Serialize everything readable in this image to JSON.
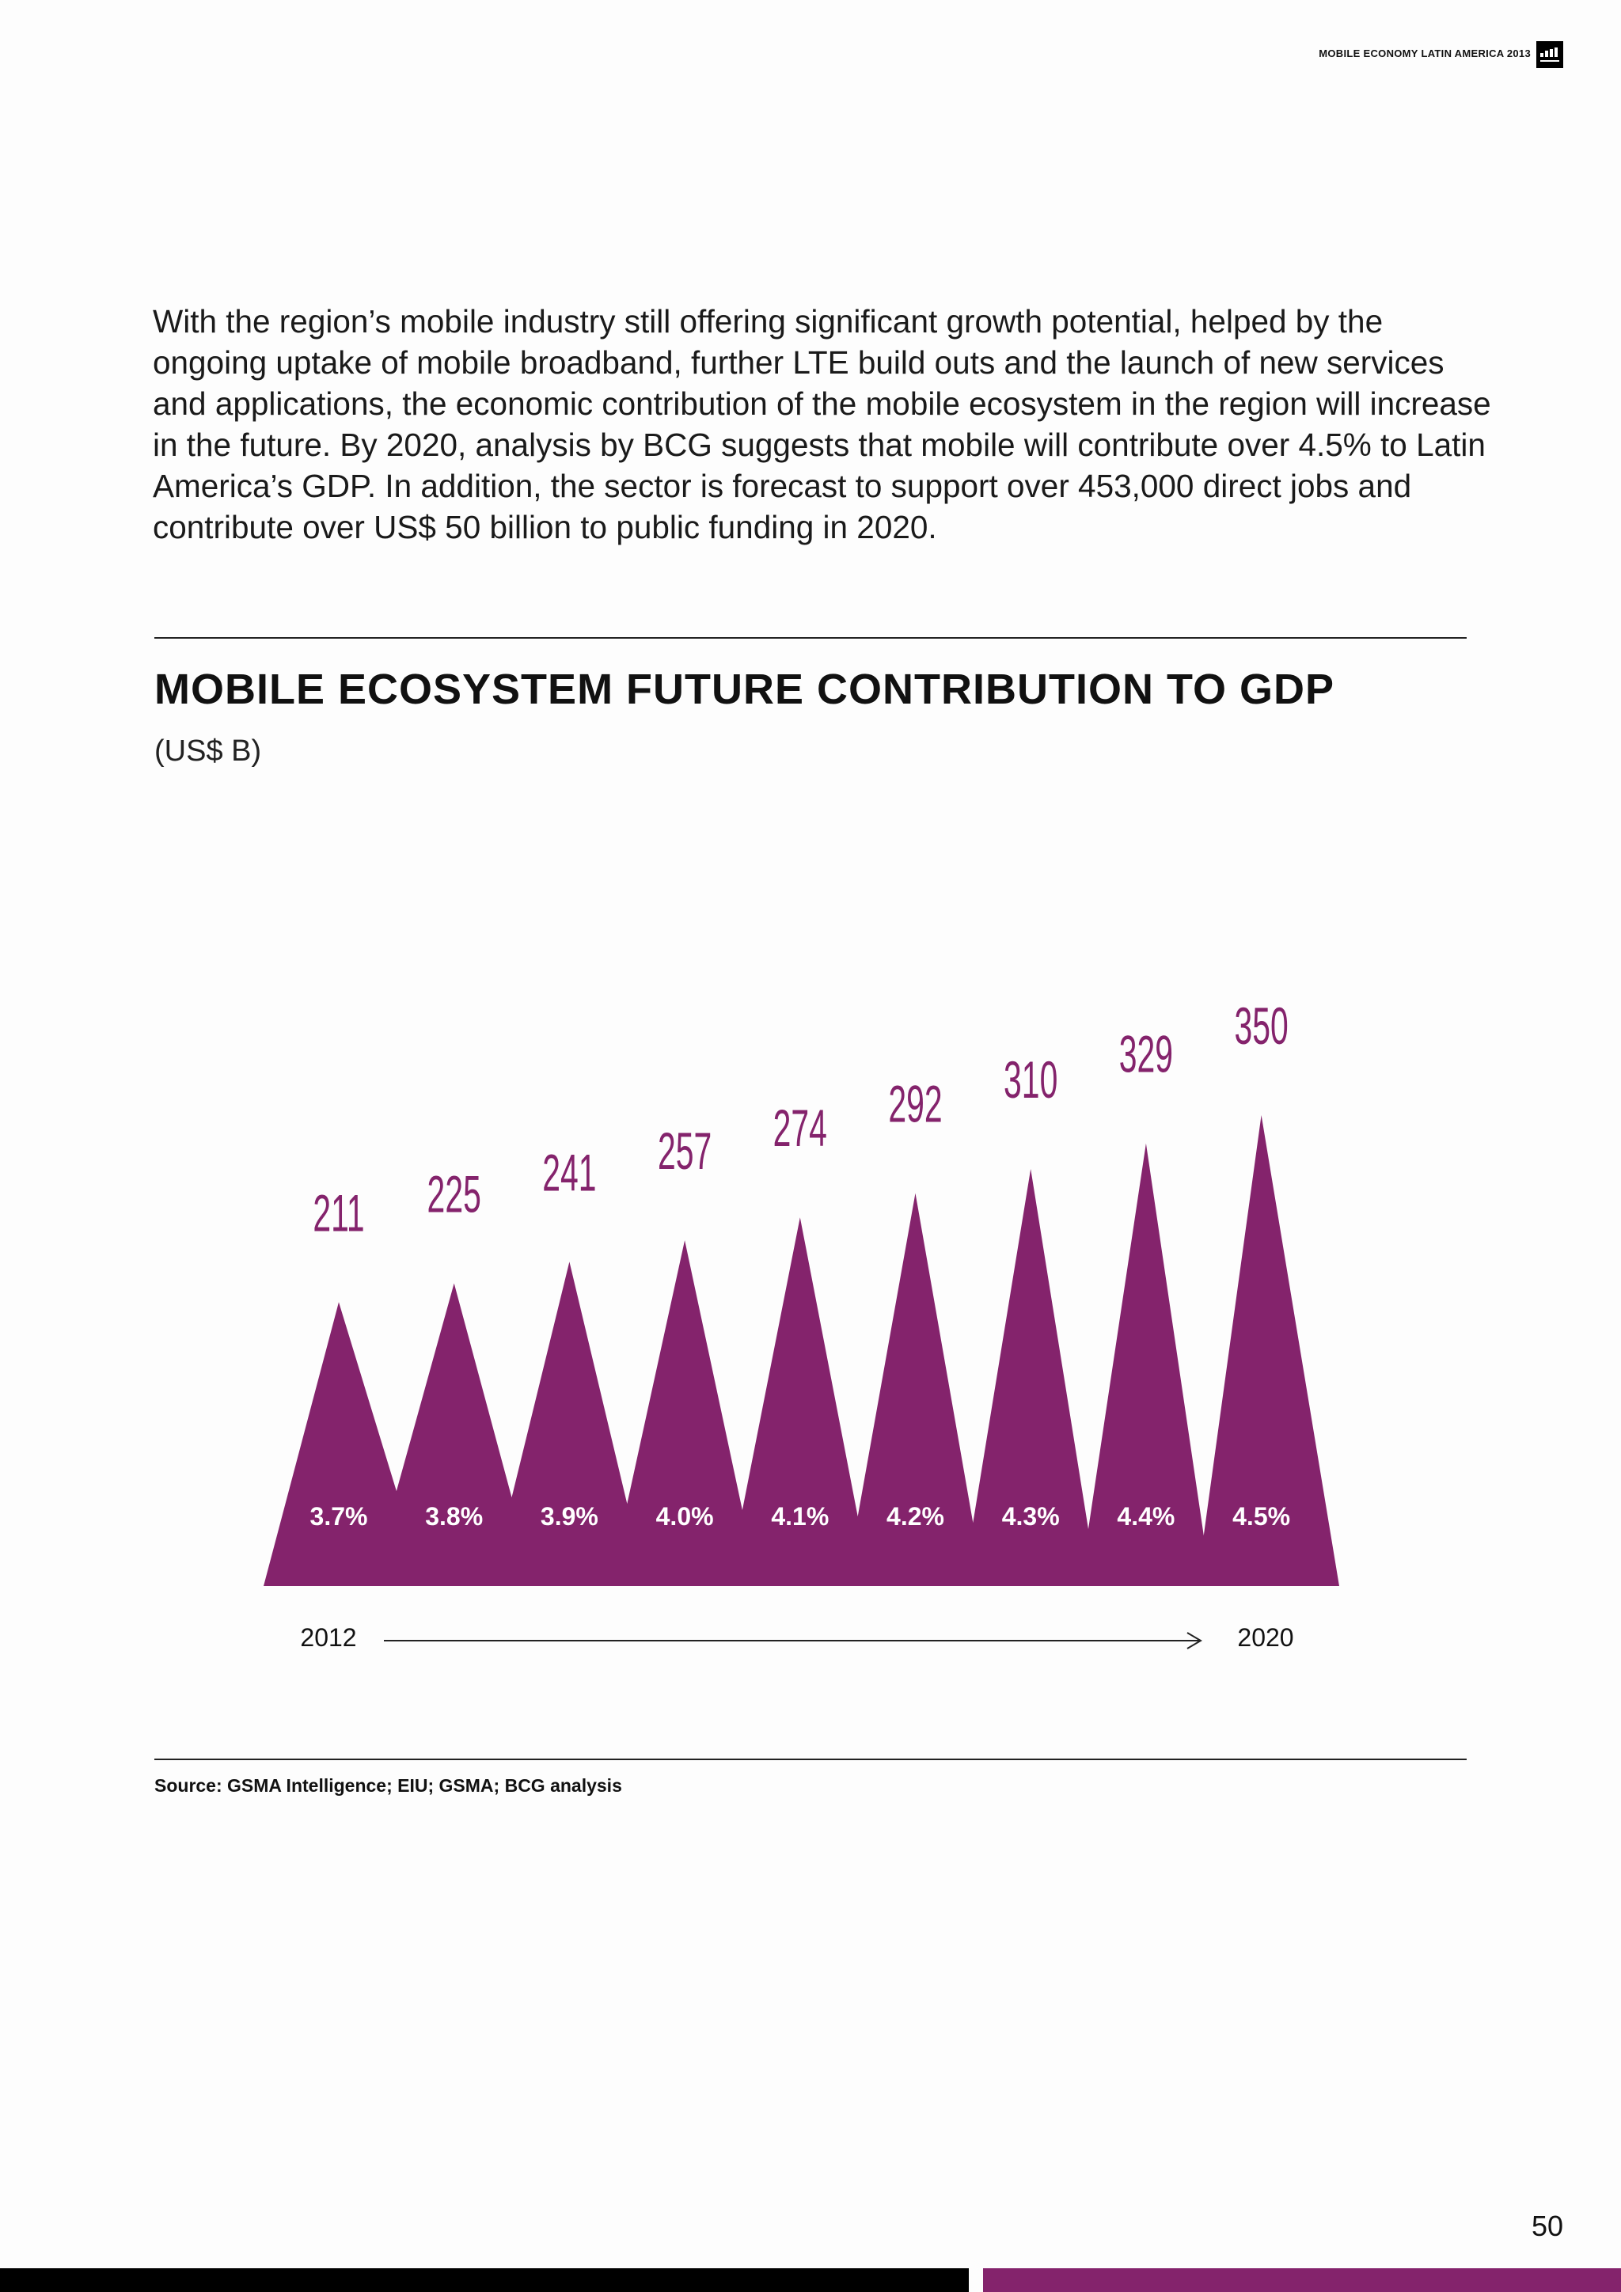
{
  "header": {
    "title": "MOBILE ECONOMY LATIN AMERICA 2013"
  },
  "logo": {
    "icon": "gsma-logo-icon"
  },
  "intro_text": "With the region’s mobile industry still offering significant growth potential, helped by the ongoing uptake of mobile broadband, further LTE build outs and the launch of new services and applications, the economic contribution of the mobile ecosystem in the region will increase in the future. By 2020, analysis by BCG suggests that mobile will contribute over 4.5% to Latin America’s GDP. In addition, the sector is forecast to support over 453,000 direct jobs and contribute over US$ 50 billion to public funding in 2020.",
  "chart_data": {
    "type": "bar",
    "title": "MOBILE ECOSYSTEM FUTURE CONTRIBUTION TO GDP",
    "subtitle": "(US$ B)",
    "values": [
      211,
      225,
      241,
      257,
      274,
      292,
      310,
      329,
      350
    ],
    "gdp_share_labels": [
      "3.7%",
      "3.8%",
      "3.9%",
      "4.0%",
      "4.1%",
      "4.2%",
      "4.3%",
      "4.4%",
      "4.5%"
    ],
    "x_start_label": "2012",
    "x_end_label": "2020",
    "color": "#84236c"
  },
  "source": "Source: GSMA Intelligence; EIU; GSMA; BCG analysis",
  "page_number": "50",
  "colors": {
    "accent": "#84236c",
    "text": "#1a1a1a",
    "footer_dark": "#000000"
  }
}
